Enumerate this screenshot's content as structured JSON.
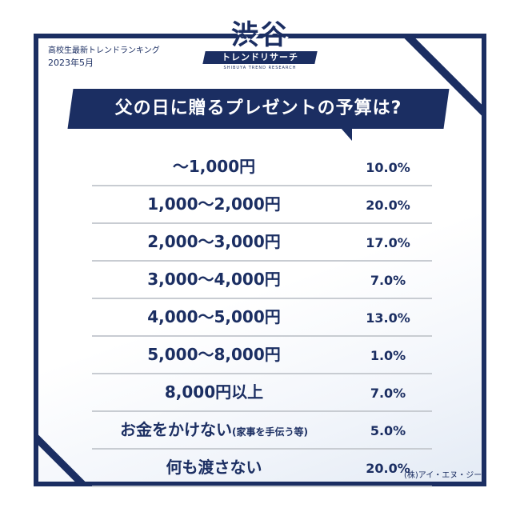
{
  "header": {
    "subtitle": "高校生最新トレンドランキング",
    "date": "2023年5月"
  },
  "logo": {
    "main": "渋谷",
    "band": "トレンドリサーチ",
    "tiny": "SHIBUYA TREND RESEARCH"
  },
  "title": "父の日に贈るプレゼントの予算は?",
  "rows": [
    {
      "label": "〜1,000円",
      "note": "",
      "percent": "10.0%"
    },
    {
      "label": "1,000〜2,000円",
      "note": "",
      "percent": "20.0%"
    },
    {
      "label": "2,000〜3,000円",
      "note": "",
      "percent": "17.0%"
    },
    {
      "label": "3,000〜4,000円",
      "note": "",
      "percent": "7.0%"
    },
    {
      "label": "4,000〜5,000円",
      "note": "",
      "percent": "13.0%"
    },
    {
      "label": "5,000〜8,000円",
      "note": "",
      "percent": "1.0%"
    },
    {
      "label": "8,000円以上",
      "note": "",
      "percent": "7.0%"
    },
    {
      "label": "お金をかけない",
      "note": "(家事を手伝う等)",
      "percent": "5.0%"
    },
    {
      "label": "何も渡さない",
      "note": "",
      "percent": "20.0%"
    }
  ],
  "credit": "(株)アイ・エヌ・ジー",
  "colors": {
    "navy": "#1b2e62",
    "divider": "#c8ccd2",
    "background": "#ffffff"
  }
}
